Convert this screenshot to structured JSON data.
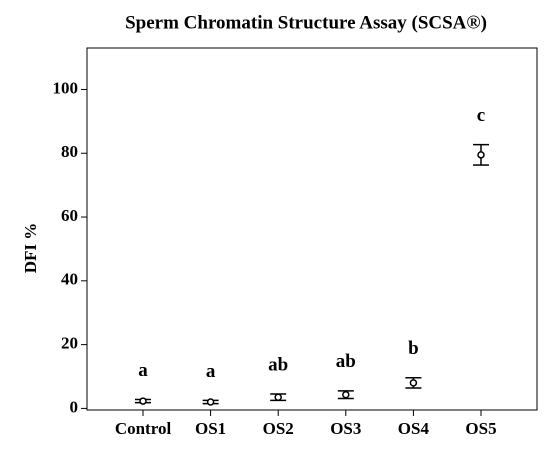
{
  "chart_data": {
    "type": "errorbar",
    "title": "Sperm Chromatin Structure Assay (SCSA®)",
    "y_label": "DFI %",
    "categories": [
      "Control",
      "OS1",
      "OS2",
      "OS3",
      "OS4",
      "OS5"
    ],
    "values": [
      2.3,
      2.0,
      3.5,
      4.3,
      8.0,
      79.5
    ],
    "errors": [
      0.5,
      0.5,
      1.0,
      1.2,
      1.6,
      3.2
    ],
    "annotations": [
      "a",
      "a",
      "ab",
      "ab",
      "b",
      "c"
    ],
    "color": "#000000",
    "ylim": [
      -0.5,
      113
    ],
    "yticks": [
      0,
      20,
      40,
      60,
      80,
      100
    ]
  }
}
